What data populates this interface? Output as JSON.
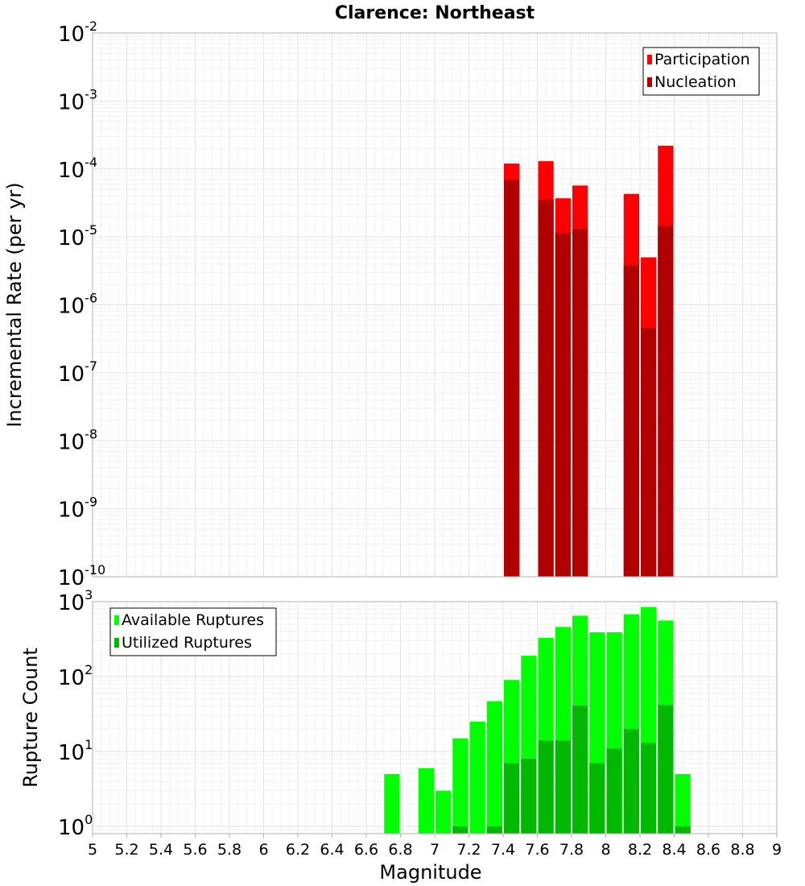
{
  "chart_data": [
    {
      "type": "bar",
      "title": "Clarence: Northeast",
      "xlabel": "",
      "ylabel": "Incremental Rate (per yr)",
      "y_scale": "log",
      "xlim": [
        5,
        9
      ],
      "ylim": [
        1e-10,
        0.01
      ],
      "y_ticks": [
        {
          "base": "10",
          "exp": "-10"
        },
        {
          "base": "10",
          "exp": "-9"
        },
        {
          "base": "10",
          "exp": "-8"
        },
        {
          "base": "10",
          "exp": "-7"
        },
        {
          "base": "10",
          "exp": "-6"
        },
        {
          "base": "10",
          "exp": "-5"
        },
        {
          "base": "10",
          "exp": "-4"
        },
        {
          "base": "10",
          "exp": "-3"
        },
        {
          "base": "10",
          "exp": "-2"
        }
      ],
      "grid": true,
      "legend_position": "top-right",
      "series": [
        {
          "name": "Participation",
          "color": "#ff0000",
          "x": [
            7.45,
            7.65,
            7.75,
            7.85,
            8.15,
            8.25,
            8.35
          ],
          "values": [
            0.00012,
            0.00013,
            3.7e-05,
            5.7e-05,
            4.3e-05,
            5e-06,
            0.00022
          ]
        },
        {
          "name": "Nucleation",
          "color": "#b00000",
          "x": [
            7.45,
            7.65,
            7.75,
            7.85,
            8.15,
            8.25,
            8.35
          ],
          "values": [
            7e-05,
            3.5e-05,
            1.15e-05,
            1.3e-05,
            3.8e-06,
            4.6e-07,
            1.45e-05
          ]
        }
      ]
    },
    {
      "type": "bar",
      "title": "",
      "xlabel": "Magnitude",
      "ylabel": "Rupture Count",
      "y_scale": "log",
      "xlim": [
        5,
        9
      ],
      "ylim": [
        0.8,
        1000
      ],
      "x_ticks": [
        "5",
        "5.2",
        "5.4",
        "5.6",
        "5.8",
        "6",
        "6.2",
        "6.4",
        "6.6",
        "6.8",
        "7",
        "7.2",
        "7.4",
        "7.6",
        "7.8",
        "8",
        "8.2",
        "8.4",
        "8.6",
        "8.8",
        "9"
      ],
      "y_ticks": [
        {
          "base": "10",
          "exp": "0"
        },
        {
          "base": "10",
          "exp": "1"
        },
        {
          "base": "10",
          "exp": "2"
        },
        {
          "base": "10",
          "exp": "3"
        }
      ],
      "grid": true,
      "legend_position": "top-left",
      "series": [
        {
          "name": "Available Ruptures",
          "color": "#00ff00",
          "x": [
            6.75,
            6.95,
            7.05,
            7.15,
            7.25,
            7.35,
            7.45,
            7.55,
            7.65,
            7.75,
            7.85,
            7.95,
            8.05,
            8.15,
            8.25,
            8.35,
            8.45
          ],
          "values": [
            5,
            6,
            3,
            15,
            25,
            47,
            90,
            190,
            330,
            460,
            650,
            390,
            390,
            680,
            850,
            560,
            5
          ]
        },
        {
          "name": "Utilized Ruptures",
          "color": "#00b800",
          "x": [
            7.15,
            7.35,
            7.45,
            7.55,
            7.65,
            7.75,
            7.85,
            7.95,
            8.05,
            8.15,
            8.25,
            8.35,
            8.45
          ],
          "values": [
            1,
            1,
            7,
            8,
            14,
            14,
            41,
            7,
            11,
            20,
            13,
            42,
            1
          ]
        }
      ]
    }
  ]
}
